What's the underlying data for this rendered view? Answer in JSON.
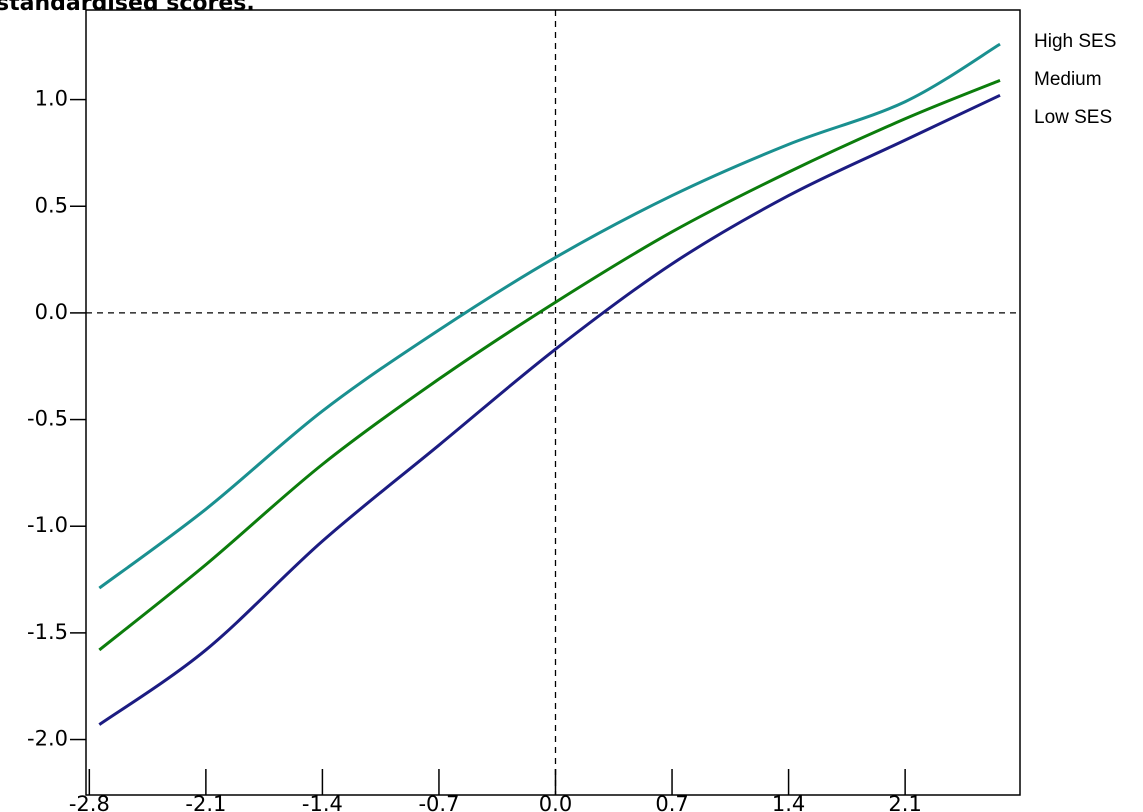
{
  "chart_data": {
    "type": "line",
    "title": "standardised scores.",
    "x": [
      -2.74,
      -2.1,
      -1.4,
      -0.7,
      0,
      0.7,
      1.4,
      2.1,
      2.67
    ],
    "series": [
      {
        "name": "High SES",
        "color": "#1a9090",
        "values": [
          -1.29,
          -0.92,
          -0.46,
          -0.08,
          0.26,
          0.55,
          0.79,
          0.99,
          1.26
        ]
      },
      {
        "name": "Medium",
        "color": "#0c7d0c",
        "values": [
          -1.58,
          -1.18,
          -0.71,
          -0.31,
          0.05,
          0.38,
          0.66,
          0.91,
          1.09
        ]
      },
      {
        "name": "Low SES",
        "color": "#1c1c82",
        "values": [
          -1.93,
          -1.58,
          -1.07,
          -0.62,
          -0.17,
          0.23,
          0.55,
          0.81,
          1.02
        ]
      }
    ],
    "xlim": [
      -2.82,
      2.79
    ],
    "ylim": [
      -2.26,
      1.42
    ],
    "xticks": [
      -2.8,
      -2.1,
      -1.4,
      -0.7,
      {
        "value": 0,
        "label": "0.0"
      },
      0.7,
      1.4,
      2.1
    ],
    "yticks": [
      {
        "value": -2,
        "label": "-2.0"
      },
      -1.5,
      {
        "value": -1,
        "label": "-1.0"
      },
      -0.5,
      {
        "value": 0,
        "label": "0.0"
      },
      0.5,
      {
        "value": 1,
        "label": "1.0"
      }
    ],
    "reference_x": 0,
    "reference_y": 0,
    "legend": "right"
  }
}
